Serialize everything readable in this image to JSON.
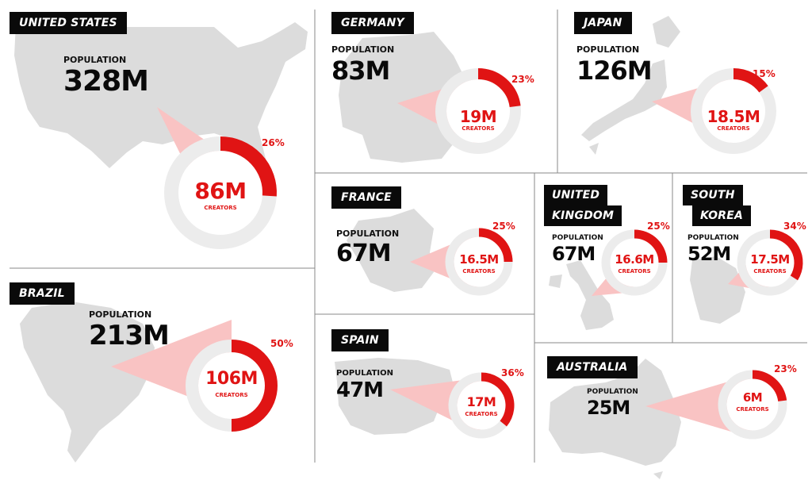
{
  "colors": {
    "accent": "#e01414",
    "map": "#dcdcdc",
    "ring": "#ececec",
    "wedge": "#f9c3c3",
    "tag_bg": "#0a0a0a"
  },
  "population_label": "POPULATION",
  "creators_label": "CREATORS",
  "chart_data": [
    {
      "type": "pie",
      "country_lines": [
        "UNITED STATES"
      ],
      "population": "328M",
      "creators": "86M",
      "share": 0.26,
      "share_label": "26%"
    },
    {
      "type": "pie",
      "country_lines": [
        "GERMANY"
      ],
      "population": "83M",
      "creators": "19M",
      "share": 0.23,
      "share_label": "23%"
    },
    {
      "type": "pie",
      "country_lines": [
        "JAPAN"
      ],
      "population": "126M",
      "creators": "18.5M",
      "share": 0.15,
      "share_label": "15%"
    },
    {
      "type": "pie",
      "country_lines": [
        "FRANCE"
      ],
      "population": "67M",
      "creators": "16.5M",
      "share": 0.25,
      "share_label": "25%"
    },
    {
      "type": "pie",
      "country_lines": [
        "UNITED",
        "KINGDOM"
      ],
      "population": "67M",
      "creators": "16.6M",
      "share": 0.25,
      "share_label": "25%"
    },
    {
      "type": "pie",
      "country_lines": [
        "SOUTH",
        "KOREA"
      ],
      "population": "52M",
      "creators": "17.5M",
      "share": 0.34,
      "share_label": "34%"
    },
    {
      "type": "pie",
      "country_lines": [
        "BRAZIL"
      ],
      "population": "213M",
      "creators": "106M",
      "share": 0.5,
      "share_label": "50%"
    },
    {
      "type": "pie",
      "country_lines": [
        "SPAIN"
      ],
      "population": "47M",
      "creators": "17M",
      "share": 0.36,
      "share_label": "36%"
    },
    {
      "type": "pie",
      "country_lines": [
        "AUSTRALIA"
      ],
      "population": "25M",
      "creators": "6M",
      "share": 0.23,
      "share_label": "23%"
    }
  ]
}
